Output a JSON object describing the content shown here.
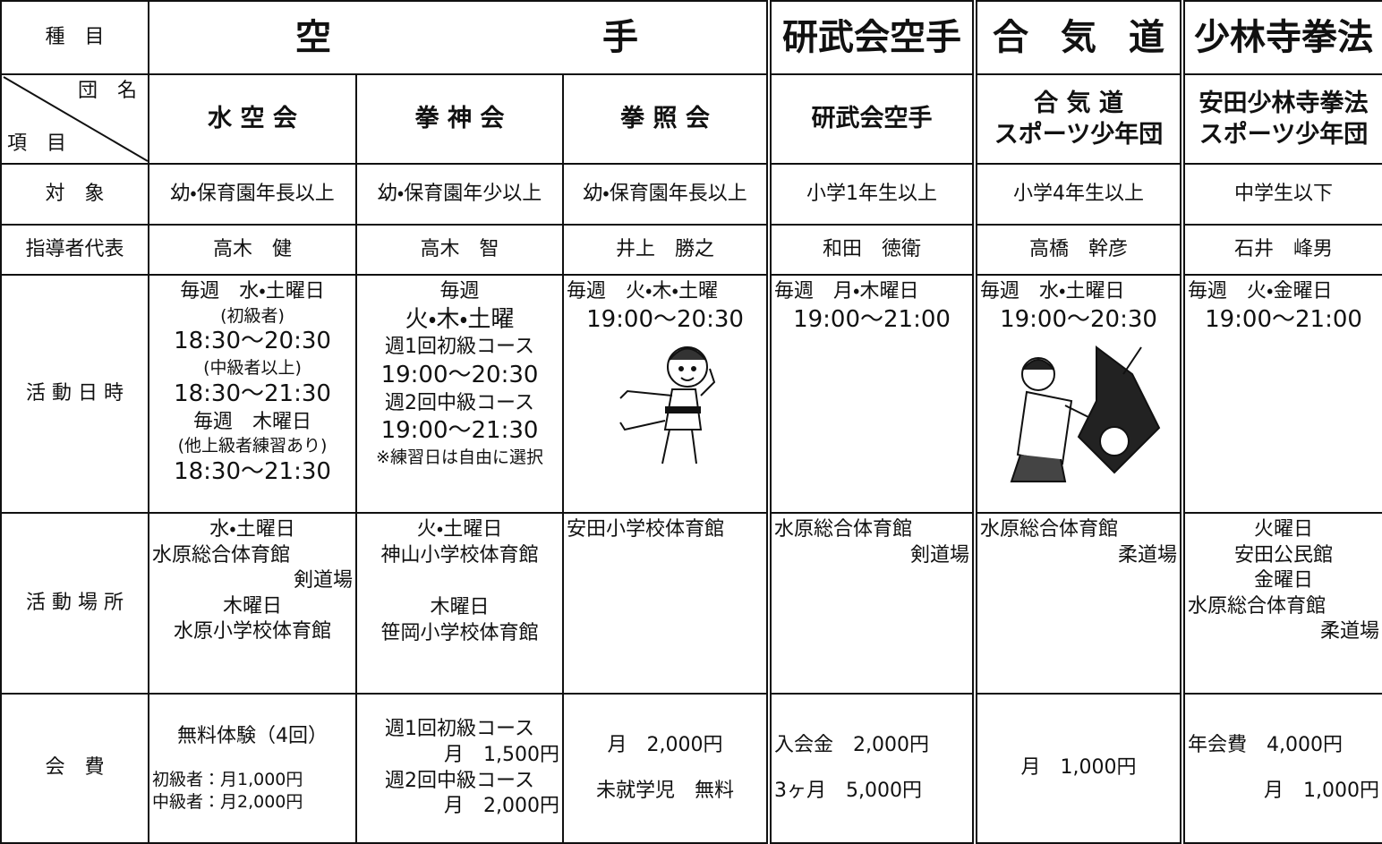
{
  "header": {
    "category_label": "種　目",
    "team_label_top": "団　名",
    "team_label_bottom": "項　目",
    "sports": [
      [
        "空",
        "手"
      ],
      [
        "研武会空手"
      ],
      [
        "合",
        "気",
        "道"
      ],
      [
        "少林寺拳法"
      ]
    ]
  },
  "teams": [
    [
      "水 空 会"
    ],
    [
      "拳 神 会"
    ],
    [
      "拳 照 会"
    ],
    [
      "研武会空手"
    ],
    [
      "合 気 道",
      "スポーツ少年団"
    ],
    [
      "安田少林寺拳法",
      "スポーツ少年団"
    ]
  ],
  "rows": [
    {
      "label": "対　象",
      "cells": [
        [
          "幼・保育園年長以上"
        ],
        [
          "幼・保育園年少以上"
        ],
        [
          "幼・保育園年長以上"
        ],
        [
          "小学1年生以上"
        ],
        [
          "小学4年生以上"
        ],
        [
          "中学生以下"
        ]
      ]
    },
    {
      "label": "指導者代表",
      "cells": [
        [
          "高木　健"
        ],
        [
          "高木　智"
        ],
        [
          "井上　勝之"
        ],
        [
          "和田　徳衛"
        ],
        [
          "高橋　幹彦"
        ],
        [
          "石井　峰男"
        ]
      ]
    },
    {
      "label": "活 動 日 時",
      "cells": [
        [
          "毎週　水・土曜日",
          "(初級者)",
          "18:30～20:30",
          "(中級者以上)",
          "18:30～21:30",
          "毎週　木曜日",
          "(他上級者練習あり)",
          "18:30～21:30"
        ],
        [
          "毎週",
          "火・木・土曜",
          "週1回初級コース",
          "19:00～20:30",
          "週2回中級コース",
          "19:00～21:30",
          "※練習日は自由に選択"
        ],
        [
          "毎週　火・木・土曜",
          "19:00～20:30"
        ],
        [
          "毎週　月・木曜日",
          "19:00～21:00"
        ],
        [
          "毎週　水・土曜日",
          "19:00～20:30"
        ],
        [
          "毎週　火・金曜日",
          "19:00～21:00"
        ]
      ]
    },
    {
      "label": "活 動 場 所",
      "cells": [
        [
          "水・土曜日",
          "水原総合体育館",
          "剣道場",
          "木曜日",
          "水原小学校体育館"
        ],
        [
          "火・土曜日",
          "神山小学校体育館",
          "木曜日",
          "笹岡小学校体育館"
        ],
        [
          "安田小学校体育館"
        ],
        [
          "水原総合体育館",
          "剣道場"
        ],
        [
          "水原総合体育館",
          "柔道場"
        ],
        [
          "火曜日",
          "安田公民館",
          "金曜日",
          "水原総合体育館",
          "柔道場"
        ]
      ]
    },
    {
      "label": "会　費",
      "cells": [
        [
          "無料体験（4回）",
          "初級者：月1,000円",
          "中級者：月2,000円"
        ],
        [
          "週1回初級コース",
          "月　1,500円",
          "週2回中級コース",
          "月　2,000円"
        ],
        [
          "月　2,000円",
          "未就学児　無料"
        ],
        [
          "入会金　2,000円",
          "3ヶ月　5,000円"
        ],
        [
          "月　1,000円"
        ],
        [
          "年会費　4,000円",
          "月　1,000円"
        ]
      ]
    }
  ]
}
